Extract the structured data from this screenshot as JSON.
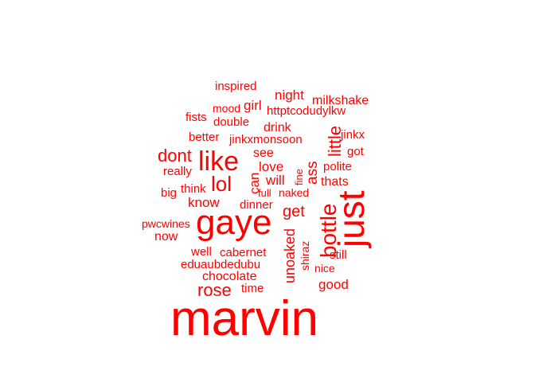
{
  "chart_data": {
    "type": "wordcloud",
    "color": "#ff0000",
    "words": [
      {
        "text": "marvin",
        "weight": 1.0
      },
      {
        "text": "gaye",
        "weight": 0.55
      },
      {
        "text": "just",
        "weight": 0.55
      },
      {
        "text": "like",
        "weight": 0.42
      },
      {
        "text": "bottle",
        "weight": 0.38
      },
      {
        "text": "lol",
        "weight": 0.33
      },
      {
        "text": "dont",
        "weight": 0.27
      },
      {
        "text": "little",
        "weight": 0.27
      },
      {
        "text": "rose",
        "weight": 0.27
      },
      {
        "text": "get",
        "weight": 0.24
      },
      {
        "text": "unoaked",
        "weight": 0.22
      },
      {
        "text": "ass",
        "weight": 0.22
      },
      {
        "text": "good",
        "weight": 0.2
      },
      {
        "text": "night",
        "weight": 0.2
      },
      {
        "text": "love",
        "weight": 0.2
      },
      {
        "text": "can",
        "weight": 0.2
      },
      {
        "text": "know",
        "weight": 0.2
      },
      {
        "text": "will",
        "weight": 0.2
      },
      {
        "text": "girl",
        "weight": 0.2
      },
      {
        "text": "drink",
        "weight": 0.2
      },
      {
        "text": "now",
        "weight": 0.2
      },
      {
        "text": "thats",
        "weight": 0.18
      },
      {
        "text": "milkshake",
        "weight": 0.18
      },
      {
        "text": "chocolate",
        "weight": 0.18
      },
      {
        "text": "still",
        "weight": 0.18
      },
      {
        "text": "polite",
        "weight": 0.18
      },
      {
        "text": "got",
        "weight": 0.17
      },
      {
        "text": "see",
        "weight": 0.17
      },
      {
        "text": "inspired",
        "weight": 0.17
      },
      {
        "text": "fists",
        "weight": 0.17
      },
      {
        "text": "better",
        "weight": 0.17
      },
      {
        "text": "jinkxmonsoon",
        "weight": 0.17
      },
      {
        "text": "double",
        "weight": 0.17
      },
      {
        "text": "httptcodudylkw",
        "weight": 0.17
      },
      {
        "text": "jinkx",
        "weight": 0.17
      },
      {
        "text": "really",
        "weight": 0.17
      },
      {
        "text": "think",
        "weight": 0.17
      },
      {
        "text": "big",
        "weight": 0.17
      },
      {
        "text": "dinner",
        "weight": 0.17
      },
      {
        "text": "well",
        "weight": 0.17
      },
      {
        "text": "cabernet",
        "weight": 0.17
      },
      {
        "text": "eduaubdedubu",
        "weight": 0.17
      },
      {
        "text": "time",
        "weight": 0.17
      },
      {
        "text": "nice",
        "weight": 0.15
      },
      {
        "text": "mood",
        "weight": 0.15
      },
      {
        "text": "naked",
        "weight": 0.15
      },
      {
        "text": "full",
        "weight": 0.15
      },
      {
        "text": "fine",
        "weight": 0.15
      },
      {
        "text": "shiraz",
        "weight": 0.15
      },
      {
        "text": "pwcwines",
        "weight": 0.15
      }
    ]
  }
}
